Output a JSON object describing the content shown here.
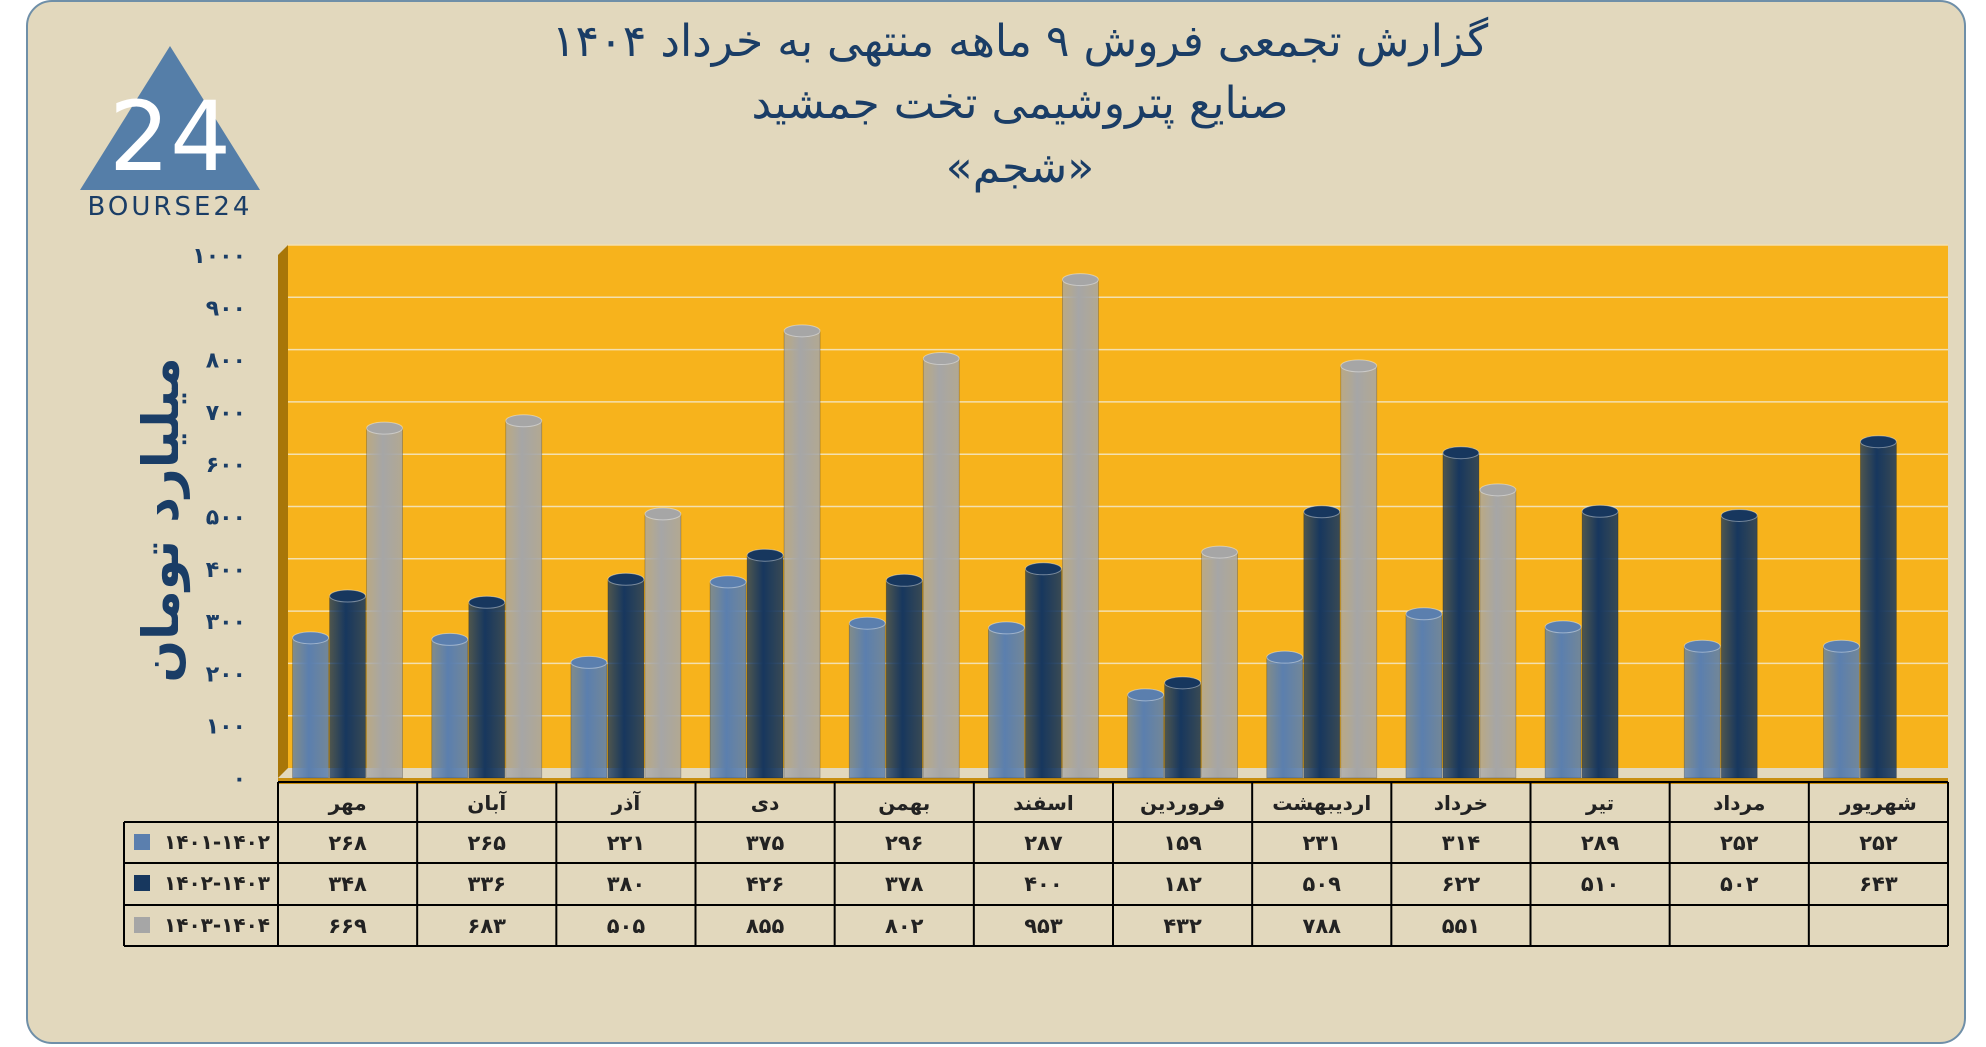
{
  "title": {
    "line1": "گزارش تجمعی فروش ۹ ماهه منتهی به خرداد ۱۴۰۴",
    "line2": "صنایع پتروشیمی تخت جمشید",
    "line3": "«شجم»"
  },
  "logo": {
    "text": "BOURSE24",
    "mark": "24",
    "icon": "triangle-logo-icon"
  },
  "colors": {
    "plot_bg": "#f7b31c",
    "series1": "#5b7fae",
    "series2": "#17375e",
    "series3": "#a6a6a6",
    "frame_bg": "#e2d8bd",
    "text": "#1a3d66"
  },
  "chart_data": {
    "type": "bar",
    "ylabel": "میلیارد تومان",
    "ylim": [
      0,
      1000
    ],
    "yticks": [
      "۰",
      "۱۰۰",
      "۲۰۰",
      "۳۰۰",
      "۴۰۰",
      "۵۰۰",
      "۶۰۰",
      "۷۰۰",
      "۸۰۰",
      "۹۰۰",
      "۱۰۰۰"
    ],
    "categories": [
      "مهر",
      "آبان",
      "آذر",
      "دی",
      "بهمن",
      "اسفند",
      "فروردین",
      "اردیبهشت",
      "خرداد",
      "تیر",
      "مرداد",
      "شهریور"
    ],
    "series": [
      {
        "name": "۱۴۰۱-۱۴۰۲",
        "values": [
          268,
          265,
          221,
          375,
          296,
          287,
          159,
          231,
          314,
          289,
          252,
          252
        ],
        "labels": [
          "۲۶۸",
          "۲۶۵",
          "۲۲۱",
          "۳۷۵",
          "۲۹۶",
          "۲۸۷",
          "۱۵۹",
          "۲۳۱",
          "۳۱۴",
          "۲۸۹",
          "۲۵۲",
          "۲۵۲"
        ]
      },
      {
        "name": "۱۴۰۲-۱۴۰۳",
        "values": [
          348,
          336,
          380,
          426,
          378,
          400,
          182,
          509,
          622,
          510,
          502,
          643
        ],
        "labels": [
          "۳۴۸",
          "۳۳۶",
          "۳۸۰",
          "۴۲۶",
          "۳۷۸",
          "۴۰۰",
          "۱۸۲",
          "۵۰۹",
          "۶۲۲",
          "۵۱۰",
          "۵۰۲",
          "۶۴۳"
        ]
      },
      {
        "name": "۱۴۰۳-۱۴۰۴",
        "values": [
          669,
          683,
          505,
          855,
          802,
          953,
          432,
          788,
          551,
          null,
          null,
          null
        ],
        "labels": [
          "۶۶۹",
          "۶۸۳",
          "۵۰۵",
          "۸۵۵",
          "۸۰۲",
          "۹۵۳",
          "۴۳۲",
          "۷۸۸",
          "۵۵۱",
          "",
          "",
          ""
        ]
      }
    ],
    "grid": true,
    "legend": "data-table"
  }
}
